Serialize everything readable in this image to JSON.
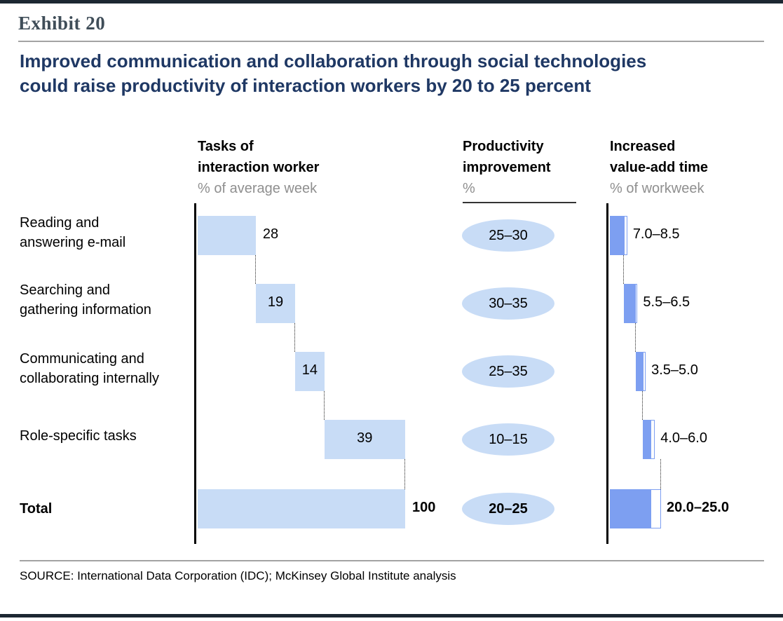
{
  "header": {
    "exhibit_label": "Exhibit 20",
    "title_line1": "Improved communication and collaboration through social technologies",
    "title_line2": "could raise productivity of interaction workers by 20 to 25 percent"
  },
  "columns": {
    "tasks": {
      "lines": [
        "Tasks of",
        "interaction worker"
      ],
      "subtitle": "% of average week"
    },
    "productivity": {
      "lines": [
        "Productivity",
        "improvement"
      ],
      "subtitle": "%"
    },
    "value_add": {
      "lines": [
        "Increased",
        "value-add time"
      ],
      "subtitle": "% of workweek"
    }
  },
  "footer": {
    "source": "SOURCE: International Data Corporation (IDC); McKinsey Global Institute analysis"
  },
  "chart_data": {
    "type": "bar",
    "subtype": "waterfall",
    "title": "Improved communication and collaboration through social technologies could raise productivity of interaction workers by 20 to 25 percent",
    "categories": [
      "Reading and answering e-mail",
      "Searching and gathering information",
      "Communicating and collaborating internally",
      "Role-specific tasks",
      "Total"
    ],
    "units": {
      "tasks": "% of average week",
      "productivity": "%",
      "value_add": "% of workweek"
    },
    "rows": [
      {
        "label_lines": [
          "Reading and",
          "answering e-mail"
        ],
        "task_pct": 28,
        "productivity": "25–30",
        "value_add_label": "7.0–8.5",
        "value_add_range": [
          7.0,
          8.5
        ]
      },
      {
        "label_lines": [
          "Searching and",
          "gathering information"
        ],
        "task_pct": 19,
        "productivity": "30–35",
        "value_add_label": "5.5–6.5",
        "value_add_range": [
          5.5,
          6.5
        ]
      },
      {
        "label_lines": [
          "Communicating and",
          "collaborating internally"
        ],
        "task_pct": 14,
        "productivity": "25–35",
        "value_add_label": "3.5–5.0",
        "value_add_range": [
          3.5,
          5.0
        ]
      },
      {
        "label_lines": [
          "Role-specific tasks"
        ],
        "task_pct": 39,
        "productivity": "10–15",
        "value_add_label": "4.0–6.0",
        "value_add_range": [
          4.0,
          6.0
        ]
      },
      {
        "label_lines": [
          "Total"
        ],
        "task_pct": 100,
        "productivity": "20–25",
        "value_add_label": "20.0–25.0",
        "value_add_range": [
          20.0,
          25.0
        ],
        "is_total": true
      }
    ],
    "colors": {
      "light_blue": "#c8dcf6",
      "medium_blue": "#7d9ff1",
      "title_navy": "#1f3864"
    },
    "layout_hints": {
      "axis_lines": "vertical black at start of task bars and value-add bars",
      "grid": false,
      "legend": false
    }
  }
}
